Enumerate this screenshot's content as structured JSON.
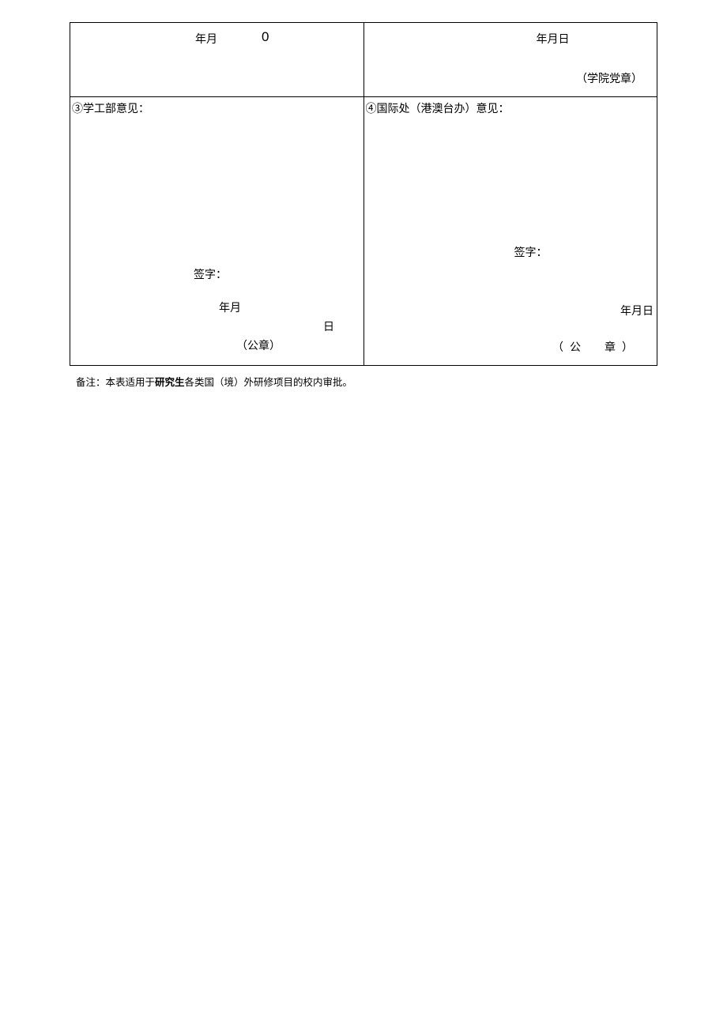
{
  "top_left": {
    "year_month": "年月",
    "zero": "0"
  },
  "top_right": {
    "year_month_day": "年月日",
    "stamp": "（学院党章）"
  },
  "bottom_left": {
    "title": "③学工部意见：",
    "sign": "签字：",
    "year_month": "年月",
    "day": "日",
    "stamp": "（公章）"
  },
  "bottom_right": {
    "title": "④国际处（港澳台办）意见：",
    "sign": "签字：",
    "year_month_day": "年月日",
    "stamp": "（公　章）"
  },
  "footnote": {
    "prefix": "备注：本表适用于",
    "bold": "研究生",
    "suffix": "各类国（境）外研修项目的校内审批。"
  }
}
